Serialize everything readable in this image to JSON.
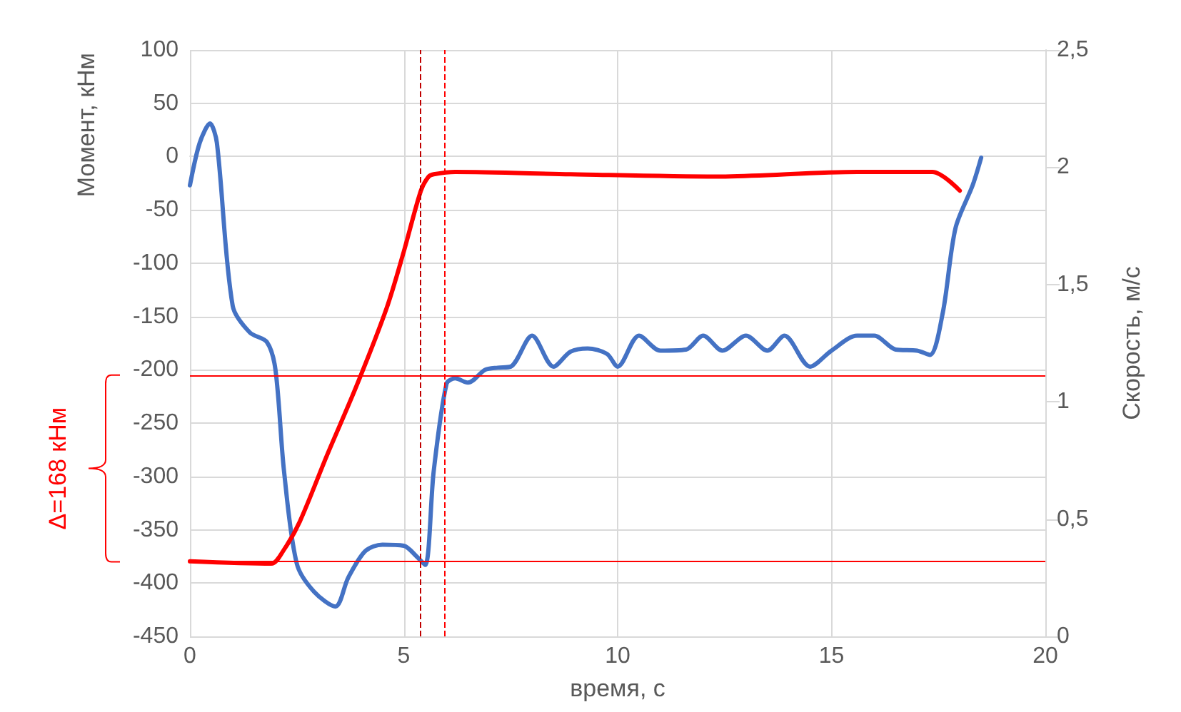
{
  "chart_data": {
    "type": "line",
    "xlabel": "время, с",
    "ylabel": "Момент, кНм",
    "y2label": "Скорость, м/с",
    "annotations": [
      "Δ=168 кНм"
    ],
    "series": [
      {
        "color": "#4472c4",
        "x": [
          0,
          0.23,
          0.47,
          0.63,
          1.0,
          1.4,
          1.8,
          2.0,
          2.2,
          2.5,
          2.9,
          3.4,
          3.7,
          4.1,
          4.5,
          5.0,
          5.3,
          5.5,
          5.7,
          6.0,
          6.2,
          6.5,
          6.9,
          7.2,
          7.5,
          8.0,
          8.5,
          8.9,
          9.3,
          9.75,
          10.0,
          10.5,
          11.0,
          11.6,
          12.0,
          12.45,
          13.0,
          13.5,
          13.9,
          14.5,
          15.0,
          15.6,
          16.0,
          16.5,
          17.0,
          17.3,
          17.6,
          17.9,
          18.3,
          18.5
        ],
        "values": [
          -27,
          13,
          31,
          13,
          -140,
          -165,
          -174,
          -200,
          -295,
          -382,
          -408,
          -422,
          -395,
          -370,
          -364,
          -365,
          -375,
          -383,
          -295,
          -213,
          -208,
          -212,
          -200,
          -198,
          -197,
          -168,
          -197,
          -183,
          -180,
          -185,
          -197,
          -168,
          -182,
          -181,
          -168,
          -182,
          -168,
          -182,
          -168,
          -197,
          -182,
          -168,
          -168,
          -181,
          -182,
          -186,
          -147,
          -67,
          -27,
          -1
        ]
      },
      {
        "color": "#ff0000",
        "axis": "y2",
        "x": [
          0,
          1.9,
          2.2,
          2.57,
          3.2,
          3.9,
          4.6,
          5.0,
          5.4,
          5.58,
          5.7,
          6.2,
          8.9,
          12.3,
          15.6,
          17.36,
          18.0
        ],
        "values": [
          0.32,
          0.31,
          0.37,
          0.49,
          0.77,
          1.07,
          1.4,
          1.64,
          1.9,
          1.96,
          1.97,
          1.98,
          1.97,
          1.96,
          1.98,
          1.98,
          1.9
        ]
      }
    ],
    "xlim": [
      0,
      20
    ],
    "xticks": [
      0,
      5,
      10,
      15,
      20
    ],
    "ylim": [
      -450,
      100
    ],
    "yticks": [
      -450,
      -400,
      -350,
      -300,
      -250,
      -200,
      -150,
      -100,
      -50,
      0,
      50,
      100
    ],
    "y2lim": [
      0,
      2.5
    ],
    "y2ticks": [
      0,
      {
        "value": 0.5,
        "label": "0,5"
      },
      1,
      {
        "value": 1.5,
        "label": "1,5"
      },
      2,
      {
        "value": 2.5,
        "label": "2,5"
      }
    ],
    "ref_lines": [
      {
        "axis": "y",
        "value": -205,
        "color": "#ff0000",
        "line_style": "solid"
      },
      {
        "axis": "y",
        "value": -380,
        "color": "#ff0000",
        "line_style": "solid"
      },
      {
        "axis": "x",
        "value": 5.4,
        "color": "#c00000",
        "line_style": "dashed"
      },
      {
        "axis": "x",
        "value": 5.95,
        "color": "#ff0000",
        "line_style": "dashed"
      }
    ],
    "grid": true,
    "marker": "none"
  }
}
